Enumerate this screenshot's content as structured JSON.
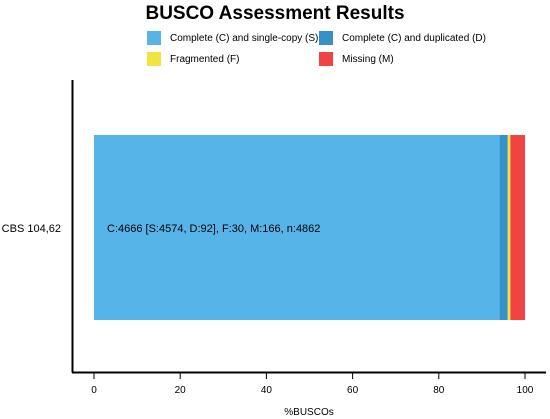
{
  "chart_data": {
    "type": "bar",
    "orientation": "horizontal",
    "stacked": true,
    "title": "BUSCO Assessment Results",
    "xlabel": "%BUSCOs",
    "ylabel": "",
    "xlim": [
      0,
      100
    ],
    "x_ticks": [
      "0",
      "20",
      "40",
      "60",
      "80",
      "100"
    ],
    "categories": [
      "CBS 104,62"
    ],
    "series": [
      {
        "name": "Complete (C) and single-copy (S)",
        "values": [
          94.1
        ],
        "color": "#56B4E9"
      },
      {
        "name": "Complete (C) and duplicated (D)",
        "values": [
          1.9
        ],
        "color": "#3492C7"
      },
      {
        "name": "Fragmented (F)",
        "values": [
          0.6
        ],
        "color": "#F0E442"
      },
      {
        "name": "Missing (M)",
        "values": [
          3.4
        ],
        "color": "#F04442"
      }
    ],
    "annotation": "C:4666 [S:4574, D:92], F:30, M:166, n:4862",
    "legend_position": "top",
    "grid": false
  }
}
